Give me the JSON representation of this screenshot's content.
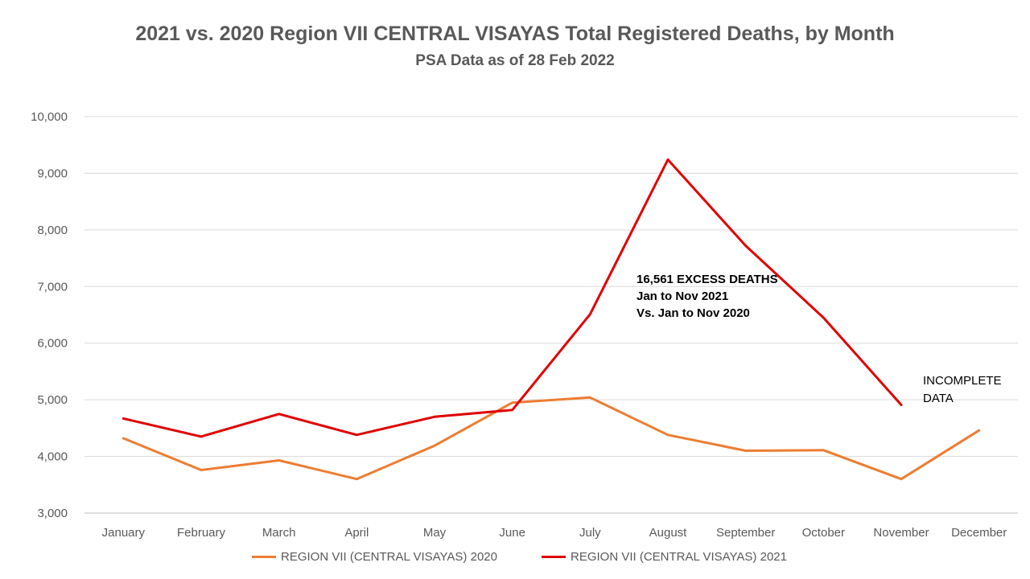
{
  "chart_data": {
    "type": "line",
    "title": "2021 vs. 2020 Region VII CENTRAL  VISAYAS Total Registered Deaths, by Month",
    "subtitle": "PSA Data as of 28 Feb 2022",
    "categories": [
      "January",
      "February",
      "March",
      "April",
      "May",
      "June",
      "July",
      "August",
      "September",
      "October",
      "November",
      "December"
    ],
    "yticks": [
      "3,000",
      "4,000",
      "5,000",
      "6,000",
      "7,000",
      "8,000",
      "9,000",
      "10,000"
    ],
    "ylim": [
      3000,
      10000
    ],
    "grid": true,
    "legend_position": "bottom",
    "series": [
      {
        "name": "REGION VII (CENTRAL VISAYAS) 2020",
        "color": "#ED7D31",
        "values": [
          4320,
          3760,
          3930,
          3600,
          4190,
          4950,
          5040,
          4380,
          4100,
          4110,
          3600,
          4460
        ]
      },
      {
        "name": "REGION VII (CENTRAL VISAYAS) 2021",
        "color": "#E00000",
        "values": [
          4670,
          4350,
          4750,
          4380,
          4700,
          4820,
          6510,
          9240,
          7720,
          6450,
          4910,
          null
        ]
      }
    ],
    "annotations": {
      "excess": [
        "16,561 EXCESS DEATHS",
        "Jan to Nov 2021",
        "Vs. Jan to Nov 2020"
      ],
      "incomplete": [
        "INCOMPLETE",
        "DATA"
      ]
    }
  }
}
